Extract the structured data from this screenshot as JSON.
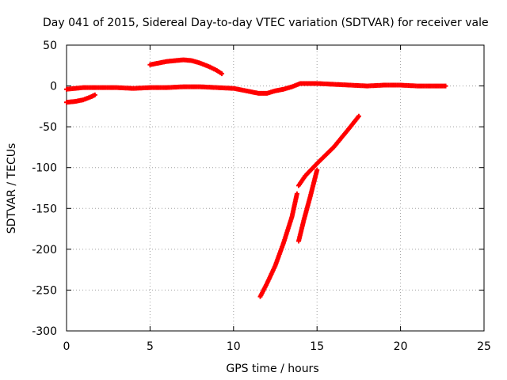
{
  "chart_data": {
    "type": "scatter",
    "title": "Day 041 of 2015, Sidereal Day-to-day VTEC variation (SDTVAR) for receiver vale",
    "xlabel": "GPS time / hours",
    "ylabel": "SDTVAR / TECUs",
    "xlim": [
      0,
      25
    ],
    "ylim": [
      -300,
      50
    ],
    "xticks": [
      0,
      5,
      10,
      15,
      20,
      25
    ],
    "yticks": [
      50,
      0,
      -50,
      -100,
      -150,
      -200,
      -250,
      -300
    ],
    "grid": true,
    "marker_color": "#ff0000",
    "series": [
      {
        "points": [
          [
            0,
            -4
          ],
          [
            1,
            -2
          ],
          [
            2,
            -2
          ],
          [
            3,
            -2
          ],
          [
            4,
            -3
          ],
          [
            5,
            -2
          ],
          [
            6,
            -2
          ],
          [
            7,
            -1
          ],
          [
            8,
            -1
          ],
          [
            9,
            -2
          ],
          [
            10,
            -3
          ],
          [
            11,
            -7
          ],
          [
            11.5,
            -9
          ],
          [
            12,
            -9
          ],
          [
            12.5,
            -6
          ],
          [
            13,
            -4
          ],
          [
            13.5,
            -1
          ],
          [
            14,
            3
          ],
          [
            14.5,
            3
          ],
          [
            15,
            3
          ],
          [
            16,
            2
          ],
          [
            17,
            1
          ],
          [
            18,
            0
          ],
          [
            19,
            1
          ],
          [
            20,
            1
          ],
          [
            21,
            0
          ],
          [
            22,
            0
          ],
          [
            22.7,
            0
          ]
        ]
      },
      {
        "points": [
          [
            0,
            -20
          ],
          [
            0.5,
            -19
          ],
          [
            1,
            -17
          ],
          [
            1.5,
            -13
          ],
          [
            1.7,
            -11
          ]
        ]
      },
      {
        "points": [
          [
            5,
            26
          ],
          [
            5.5,
            28
          ],
          [
            6,
            30
          ],
          [
            6.5,
            31
          ],
          [
            7,
            32
          ],
          [
            7.5,
            31
          ],
          [
            8,
            28
          ],
          [
            8.5,
            24
          ],
          [
            9,
            19
          ],
          [
            9.3,
            15
          ]
        ]
      },
      {
        "points": [
          [
            11.6,
            -258
          ],
          [
            12,
            -242
          ],
          [
            12.5,
            -220
          ],
          [
            13,
            -192
          ],
          [
            13.5,
            -160
          ],
          [
            13.8,
            -132
          ]
        ]
      },
      {
        "points": [
          [
            13.9,
            -122
          ],
          [
            14.3,
            -110
          ],
          [
            15,
            -95
          ],
          [
            16,
            -75
          ],
          [
            17,
            -50
          ],
          [
            17.5,
            -37
          ]
        ]
      },
      {
        "points": [
          [
            13.9,
            -190
          ],
          [
            14.2,
            -165
          ],
          [
            14.6,
            -135
          ],
          [
            15,
            -103
          ]
        ]
      }
    ]
  }
}
